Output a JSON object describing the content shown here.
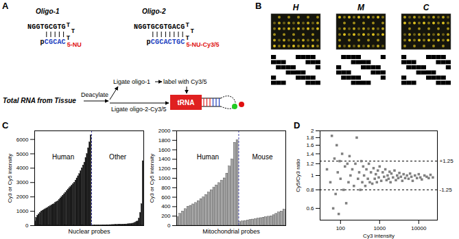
{
  "panel_labels": [
    "A",
    "B",
    "C",
    "D"
  ],
  "diagram": {
    "oligos": [
      {
        "name": "Oligo-1",
        "top": "NGGTGCGTG",
        "bottom": "pCGCAC",
        "loop": "TTT",
        "modification": "5-NU"
      },
      {
        "name": "Oligo-2",
        "top": "NGGTGCGTGACG",
        "bottom": "pCGCACTGC",
        "loop": "TTT",
        "modification": "5-NU-Cy3/5"
      }
    ],
    "flow": {
      "source": "Total RNA from Tissue",
      "steps": [
        "Deacylate",
        "Ligate oligo-1",
        "label with Cy3/5",
        "Ligate oligo-2-Cy3/5"
      ],
      "product": "tRNA"
    }
  },
  "arrays": {
    "labels": [
      "H",
      "M",
      "C"
    ]
  },
  "chart_data": [
    {
      "type": "bar",
      "xlabel": "Nuclear probes",
      "ylabel": "Cy3 or Cy5 intensity",
      "series": [
        {
          "name": "Human",
          "color": "#000000",
          "values": [
            300,
            550,
            700,
            800,
            900,
            1000,
            1050,
            1100,
            1150,
            1200,
            1250,
            1300,
            1350,
            1400,
            1450,
            1500,
            1600,
            1650,
            1700,
            1800,
            1900,
            2000,
            2100,
            2200,
            2300,
            2400,
            2500,
            2600,
            2700,
            2800,
            2900,
            3000,
            3150,
            3300,
            3450,
            3600,
            3800,
            4000,
            4200,
            4400,
            4700,
            5000,
            5400,
            5800,
            6300
          ]
        },
        {
          "name": "Other",
          "color": "#000000",
          "values": [
            20,
            20,
            25,
            25,
            30,
            30,
            30,
            35,
            35,
            40,
            40,
            40,
            45,
            45,
            50,
            50,
            55,
            55,
            60,
            60,
            65,
            70,
            70,
            75,
            80,
            85,
            90,
            95,
            100,
            110,
            120,
            130,
            150,
            170,
            200,
            250,
            300,
            500,
            900,
            1500,
            4500
          ]
        }
      ],
      "ylim": [
        0,
        6600
      ],
      "yticks": [
        0,
        1000,
        2000,
        3000,
        4000,
        5000,
        6000
      ],
      "tick_labels": "y"
    },
    {
      "type": "bar",
      "xlabel": "Mitochondrial probes",
      "ylabel": "Cy3 or Cy5 intensity",
      "series": [
        {
          "name": "Human",
          "color": "#a6a6a6",
          "values": [
            180,
            250,
            300,
            350,
            400,
            420,
            450,
            480,
            520,
            560,
            600,
            650,
            700,
            750,
            800,
            850,
            900,
            950,
            1000,
            1100,
            1250,
            1400,
            1750,
            1800
          ]
        },
        {
          "name": "Mouse",
          "color": "#a6a6a6",
          "values": [
            80,
            90,
            100,
            110,
            120,
            130,
            140,
            150,
            160,
            170,
            180,
            190,
            200,
            220,
            250,
            280,
            300,
            340
          ]
        }
      ],
      "ylim": [
        0,
        2000
      ],
      "yticks": [
        0,
        200,
        400,
        600,
        800,
        1000,
        1200,
        1400,
        1600,
        1800,
        2000
      ],
      "tick_labels": "y"
    },
    {
      "type": "scatter",
      "xlabel": "Cy3 intensity",
      "ylabel": "Cy5/Cy3 ratio",
      "log": true,
      "color": "#808080",
      "marker": "square",
      "x": [
        45,
        55,
        60,
        65,
        70,
        75,
        80,
        85,
        90,
        95,
        100,
        110,
        120,
        130,
        140,
        150,
        160,
        170,
        180,
        200,
        220,
        240,
        260,
        280,
        300,
        320,
        340,
        360,
        380,
        400,
        430,
        460,
        500,
        530,
        560,
        600,
        650,
        700,
        750,
        800,
        850,
        900,
        950,
        1000,
        1100,
        1200,
        1300,
        1400,
        1500,
        1600,
        1700,
        1800,
        1900,
        2000,
        2200,
        2400,
        2600,
        2800,
        3000,
        3200,
        3500,
        3800,
        4100,
        4500,
        5000,
        5500,
        6000,
        6500,
        7000,
        8000,
        9000,
        10000,
        11000,
        12000,
        14000,
        16000,
        18000,
        20000,
        23000
      ],
      "values": [
        1.1,
        0.9,
        1.85,
        0.6,
        1.3,
        0.75,
        1.6,
        1.05,
        0.55,
        1.25,
        0.95,
        1.4,
        0.8,
        1.15,
        0.65,
        1.2,
        0.9,
        1.35,
        1.0,
        1.1,
        0.85,
        1.2,
        1.8,
        0.95,
        1.05,
        0.8,
        1.25,
        0.9,
        1.15,
        1.0,
        0.85,
        1.1,
        0.95,
        1.2,
        0.9,
        1.05,
        0.88,
        1.12,
        0.95,
        1.02,
        0.9,
        1.08,
        0.97,
        1.15,
        0.92,
        1.05,
        0.98,
        1.1,
        0.93,
        1.0,
        0.95,
        1.06,
        0.9,
        1.03,
        0.97,
        1.08,
        0.93,
        1.0,
        0.96,
        1.04,
        0.98,
        0.92,
        1.02,
        0.96,
        1.0,
        0.95,
        1.03,
        0.98,
        0.92,
        1.0,
        0.96,
        1.02,
        0.97,
        0.94,
        1.0,
        0.98,
        0.96,
        1.01,
        0.97
      ],
      "xlim": [
        30,
        30000
      ],
      "xticks": [
        100,
        1000,
        10000
      ],
      "ylim": [
        0.5,
        2
      ],
      "yticks": [
        0.6,
        0.8,
        1,
        1.2,
        1.4,
        1.6,
        1.8,
        2
      ],
      "reference_lines": [
        {
          "value": 1.25,
          "label": "+1.25"
        },
        {
          "value": 0.8,
          "label": "-1.25"
        }
      ],
      "line_style": "dashed"
    }
  ]
}
